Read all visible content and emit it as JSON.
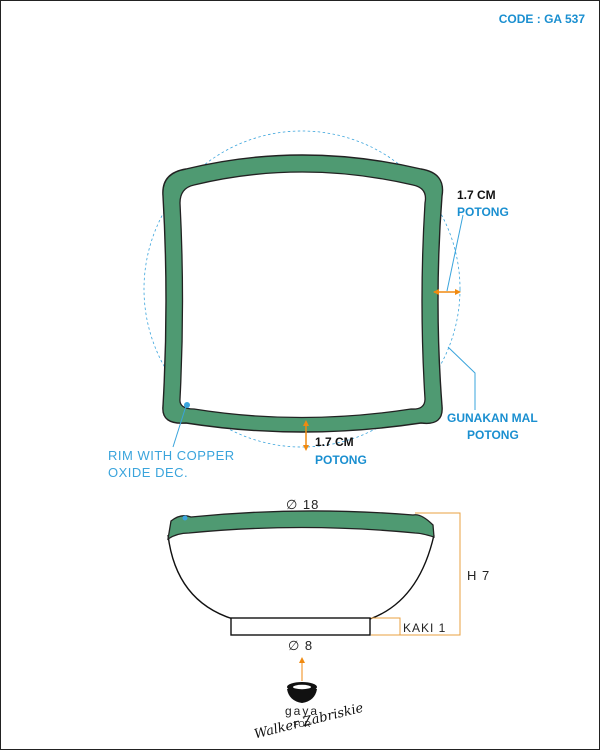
{
  "header": {
    "code": "CODE : GA 537"
  },
  "annotations": {
    "right_thickness": {
      "value": "1.7 CM",
      "label": "POTONG"
    },
    "bottom_thickness": {
      "value": "1.7 CM",
      "label": "POTONG"
    },
    "mold_note": {
      "line1": "GUNAKAN MAL",
      "line2": "POTONG"
    },
    "rim_note": {
      "line1": "RIM WITH COPPER",
      "line2": "OXIDE DEC."
    }
  },
  "dimensions": {
    "top_diameter": "∅ 18",
    "height": "H 7",
    "foot": "KAKI 1",
    "base_diameter": "∅ 8"
  },
  "logo": {
    "brand": "gaya",
    "for": "FOR",
    "client": "Walker Zabriskie"
  },
  "colors": {
    "rim_green": "#4f9a72",
    "dim_orange": "#e8a040",
    "arrow_orange": "#f08a10",
    "guide_blue": "#3aa4dc"
  }
}
